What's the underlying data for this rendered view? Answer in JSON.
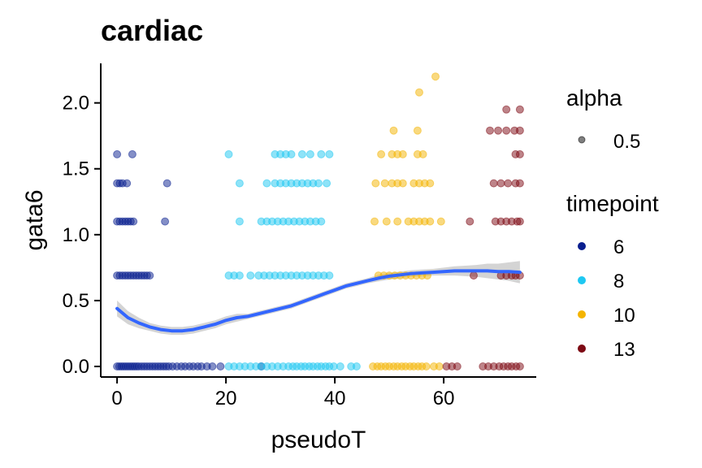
{
  "chart_data": {
    "type": "scatter",
    "title": "cardiac",
    "xlabel": "pseudoT",
    "ylabel": "gata6",
    "xlim": [
      -3,
      77
    ],
    "ylim": [
      -0.08,
      2.3
    ],
    "x_ticks": [
      "0",
      "20",
      "40",
      "60"
    ],
    "y_ticks": [
      "0.0",
      "0.5",
      "1.0",
      "1.5",
      "2.0"
    ],
    "grid": false,
    "point_alpha": 0.5,
    "legend": {
      "placement": "right",
      "alpha_title": "alpha",
      "alpha_label": "0.5",
      "timepoint_title": "timepoint"
    },
    "series": [
      {
        "name": "6",
        "color": "#0a1f8f",
        "points": [
          [
            0,
            0
          ],
          [
            0.4,
            0
          ],
          [
            0.8,
            0
          ],
          [
            1.2,
            0
          ],
          [
            1.6,
            0
          ],
          [
            2,
            0
          ],
          [
            2.4,
            0
          ],
          [
            2.8,
            0
          ],
          [
            3.2,
            0
          ],
          [
            3.6,
            0
          ],
          [
            4,
            0
          ],
          [
            4.5,
            0
          ],
          [
            5,
            0
          ],
          [
            5.5,
            0
          ],
          [
            6,
            0
          ],
          [
            6.5,
            0
          ],
          [
            7,
            0
          ],
          [
            7.5,
            0
          ],
          [
            8,
            0
          ],
          [
            8.5,
            0
          ],
          [
            9,
            0
          ],
          [
            9.5,
            0
          ],
          [
            10.2,
            0
          ],
          [
            11,
            0
          ],
          [
            11.8,
            0
          ],
          [
            12.5,
            0
          ],
          [
            13.3,
            0
          ],
          [
            14,
            0
          ],
          [
            14.8,
            0
          ],
          [
            15.5,
            0
          ],
          [
            16.5,
            0
          ],
          [
            17.5,
            0
          ],
          [
            19,
            0
          ],
          [
            26.5,
            0
          ],
          [
            0,
            0.69
          ],
          [
            0.5,
            0.69
          ],
          [
            1,
            0.69
          ],
          [
            1.5,
            0.69
          ],
          [
            2,
            0.69
          ],
          [
            2.5,
            0.69
          ],
          [
            3,
            0.69
          ],
          [
            3.5,
            0.69
          ],
          [
            4,
            0.69
          ],
          [
            4.5,
            0.69
          ],
          [
            5,
            0.69
          ],
          [
            5.5,
            0.69
          ],
          [
            6,
            0.69
          ],
          [
            0,
            1.1
          ],
          [
            0.5,
            1.1
          ],
          [
            1,
            1.1
          ],
          [
            1.5,
            1.1
          ],
          [
            2,
            1.1
          ],
          [
            2.5,
            1.1
          ],
          [
            3,
            1.1
          ],
          [
            8.8,
            1.1
          ],
          [
            0,
            1.39
          ],
          [
            0.5,
            1.39
          ],
          [
            1,
            1.39
          ],
          [
            1.8,
            1.39
          ],
          [
            9.2,
            1.39
          ],
          [
            0,
            1.61
          ],
          [
            2.8,
            1.61
          ]
        ]
      },
      {
        "name": "8",
        "color": "#1ec8f2",
        "points": [
          [
            20.5,
            0
          ],
          [
            21.5,
            0
          ],
          [
            22.5,
            0
          ],
          [
            23.5,
            0
          ],
          [
            24.5,
            0
          ],
          [
            25.5,
            0
          ],
          [
            26.5,
            0
          ],
          [
            27.5,
            0
          ],
          [
            28.5,
            0
          ],
          [
            29.5,
            0
          ],
          [
            30.5,
            0
          ],
          [
            31.5,
            0
          ],
          [
            32.3,
            0
          ],
          [
            33,
            0
          ],
          [
            33.8,
            0
          ],
          [
            34.5,
            0
          ],
          [
            35.3,
            0
          ],
          [
            36,
            0
          ],
          [
            36.8,
            0
          ],
          [
            37.5,
            0
          ],
          [
            38.3,
            0
          ],
          [
            39,
            0
          ],
          [
            39.8,
            0
          ],
          [
            41,
            0
          ],
          [
            43,
            0
          ],
          [
            44,
            0
          ],
          [
            20.5,
            0.69
          ],
          [
            21.5,
            0.69
          ],
          [
            22.5,
            0.69
          ],
          [
            24.5,
            0.69
          ],
          [
            26,
            0.69
          ],
          [
            27,
            0.69
          ],
          [
            28,
            0.69
          ],
          [
            29,
            0.69
          ],
          [
            30,
            0.69
          ],
          [
            31,
            0.69
          ],
          [
            32,
            0.69
          ],
          [
            33,
            0.69
          ],
          [
            34,
            0.69
          ],
          [
            35,
            0.69
          ],
          [
            36,
            0.69
          ],
          [
            37,
            0.69
          ],
          [
            38,
            0.69
          ],
          [
            39,
            0.69
          ],
          [
            22.5,
            1.1
          ],
          [
            26.5,
            1.1
          ],
          [
            27.5,
            1.1
          ],
          [
            28.5,
            1.1
          ],
          [
            29.5,
            1.1
          ],
          [
            30.5,
            1.1
          ],
          [
            31.5,
            1.1
          ],
          [
            32.5,
            1.1
          ],
          [
            33.5,
            1.1
          ],
          [
            34.5,
            1.1
          ],
          [
            35.5,
            1.1
          ],
          [
            36.5,
            1.1
          ],
          [
            37.5,
            1.1
          ],
          [
            22.5,
            1.39
          ],
          [
            27.5,
            1.39
          ],
          [
            29,
            1.39
          ],
          [
            30,
            1.39
          ],
          [
            31,
            1.39
          ],
          [
            32,
            1.39
          ],
          [
            33,
            1.39
          ],
          [
            34,
            1.39
          ],
          [
            35,
            1.39
          ],
          [
            36,
            1.39
          ],
          [
            37,
            1.39
          ],
          [
            38.5,
            1.39
          ],
          [
            20.5,
            1.61
          ],
          [
            29,
            1.61
          ],
          [
            30,
            1.61
          ],
          [
            31,
            1.61
          ],
          [
            32,
            1.61
          ],
          [
            34,
            1.61
          ],
          [
            35.5,
            1.61
          ],
          [
            37.5,
            1.61
          ],
          [
            39,
            1.61
          ]
        ]
      },
      {
        "name": "10",
        "color": "#f4b400",
        "points": [
          [
            47,
            0
          ],
          [
            47.8,
            0
          ],
          [
            48.5,
            0
          ],
          [
            49.3,
            0
          ],
          [
            50,
            0
          ],
          [
            50.8,
            0
          ],
          [
            51.5,
            0
          ],
          [
            52.3,
            0
          ],
          [
            53,
            0
          ],
          [
            53.8,
            0
          ],
          [
            54.5,
            0
          ],
          [
            55.3,
            0
          ],
          [
            56,
            0
          ],
          [
            56.8,
            0
          ],
          [
            58.2,
            0
          ],
          [
            59.2,
            0
          ],
          [
            48,
            0.69
          ],
          [
            49,
            0.69
          ],
          [
            50,
            0.69
          ],
          [
            51,
            0.69
          ],
          [
            52,
            0.69
          ],
          [
            53,
            0.69
          ],
          [
            54,
            0.69
          ],
          [
            55,
            0.69
          ],
          [
            56,
            0.69
          ],
          [
            57,
            0.69
          ],
          [
            47.3,
            1.1
          ],
          [
            49.5,
            1.1
          ],
          [
            51.5,
            1.1
          ],
          [
            53.5,
            1.1
          ],
          [
            54.5,
            1.1
          ],
          [
            55.5,
            1.1
          ],
          [
            56.5,
            1.1
          ],
          [
            57.5,
            1.1
          ],
          [
            59.5,
            1.1
          ],
          [
            47.5,
            1.39
          ],
          [
            49.2,
            1.39
          ],
          [
            50.5,
            1.39
          ],
          [
            51.5,
            1.39
          ],
          [
            52.5,
            1.39
          ],
          [
            54.5,
            1.39
          ],
          [
            55.5,
            1.39
          ],
          [
            56.5,
            1.39
          ],
          [
            57.5,
            1.39
          ],
          [
            48.5,
            1.61
          ],
          [
            50.5,
            1.61
          ],
          [
            51.5,
            1.61
          ],
          [
            52.5,
            1.61
          ],
          [
            55.2,
            1.61
          ],
          [
            56.2,
            1.61
          ],
          [
            50.8,
            1.79
          ],
          [
            55.2,
            1.79
          ],
          [
            55.5,
            2.08
          ],
          [
            58.5,
            2.2
          ]
        ]
      },
      {
        "name": "13",
        "color": "#7d0a14",
        "points": [
          [
            60.5,
            0
          ],
          [
            61.5,
            0
          ],
          [
            62.5,
            0
          ],
          [
            67.2,
            0
          ],
          [
            68.2,
            0
          ],
          [
            69.2,
            0
          ],
          [
            70.2,
            0
          ],
          [
            71,
            0
          ],
          [
            71.8,
            0
          ],
          [
            72.5,
            0
          ],
          [
            73.3,
            0
          ],
          [
            74,
            0
          ],
          [
            65.5,
            0.69
          ],
          [
            70.5,
            0.69
          ],
          [
            71.5,
            0.69
          ],
          [
            72.5,
            0.69
          ],
          [
            73.2,
            0.69
          ],
          [
            74,
            0.69
          ],
          [
            64.8,
            1.1
          ],
          [
            69.5,
            1.1
          ],
          [
            70.5,
            1.1
          ],
          [
            71.5,
            1.1
          ],
          [
            72.5,
            1.1
          ],
          [
            73.5,
            1.1
          ],
          [
            74,
            1.1
          ],
          [
            69.2,
            1.39
          ],
          [
            70.5,
            1.39
          ],
          [
            71.8,
            1.39
          ],
          [
            73.2,
            1.39
          ],
          [
            74,
            1.39
          ],
          [
            73.2,
            1.61
          ],
          [
            74,
            1.61
          ],
          [
            68.5,
            1.79
          ],
          [
            70,
            1.79
          ],
          [
            71.5,
            1.79
          ],
          [
            73,
            1.79
          ],
          [
            74,
            1.79
          ],
          [
            71.5,
            1.95
          ],
          [
            74,
            1.95
          ]
        ]
      }
    ],
    "smooth": {
      "color": "#3366ff",
      "band_color": "#bdbdbd",
      "x": [
        0,
        2,
        4,
        6,
        8,
        10,
        12,
        14,
        16,
        18,
        20,
        22,
        24,
        26,
        28,
        30,
        32,
        34,
        36,
        38,
        40,
        42,
        44,
        46,
        48,
        50,
        52,
        54,
        56,
        58,
        60,
        62,
        64,
        66,
        68,
        70,
        72,
        74
      ],
      "y": [
        0.44,
        0.37,
        0.33,
        0.3,
        0.28,
        0.27,
        0.27,
        0.28,
        0.3,
        0.32,
        0.35,
        0.37,
        0.38,
        0.4,
        0.42,
        0.44,
        0.46,
        0.49,
        0.52,
        0.55,
        0.58,
        0.61,
        0.63,
        0.65,
        0.67,
        0.685,
        0.695,
        0.705,
        0.71,
        0.715,
        0.72,
        0.725,
        0.725,
        0.725,
        0.725,
        0.72,
        0.72,
        0.715
      ],
      "lower": [
        0.38,
        0.32,
        0.29,
        0.27,
        0.25,
        0.24,
        0.24,
        0.25,
        0.27,
        0.29,
        0.32,
        0.34,
        0.36,
        0.38,
        0.4,
        0.42,
        0.44,
        0.47,
        0.5,
        0.53,
        0.56,
        0.59,
        0.61,
        0.63,
        0.645,
        0.66,
        0.67,
        0.68,
        0.685,
        0.69,
        0.69,
        0.69,
        0.685,
        0.68,
        0.67,
        0.66,
        0.65,
        0.63
      ],
      "upper": [
        0.5,
        0.42,
        0.37,
        0.33,
        0.31,
        0.3,
        0.3,
        0.31,
        0.33,
        0.35,
        0.38,
        0.4,
        0.4,
        0.42,
        0.44,
        0.46,
        0.48,
        0.51,
        0.54,
        0.57,
        0.6,
        0.63,
        0.65,
        0.67,
        0.695,
        0.71,
        0.72,
        0.73,
        0.735,
        0.74,
        0.75,
        0.76,
        0.765,
        0.77,
        0.78,
        0.78,
        0.79,
        0.8
      ]
    }
  }
}
